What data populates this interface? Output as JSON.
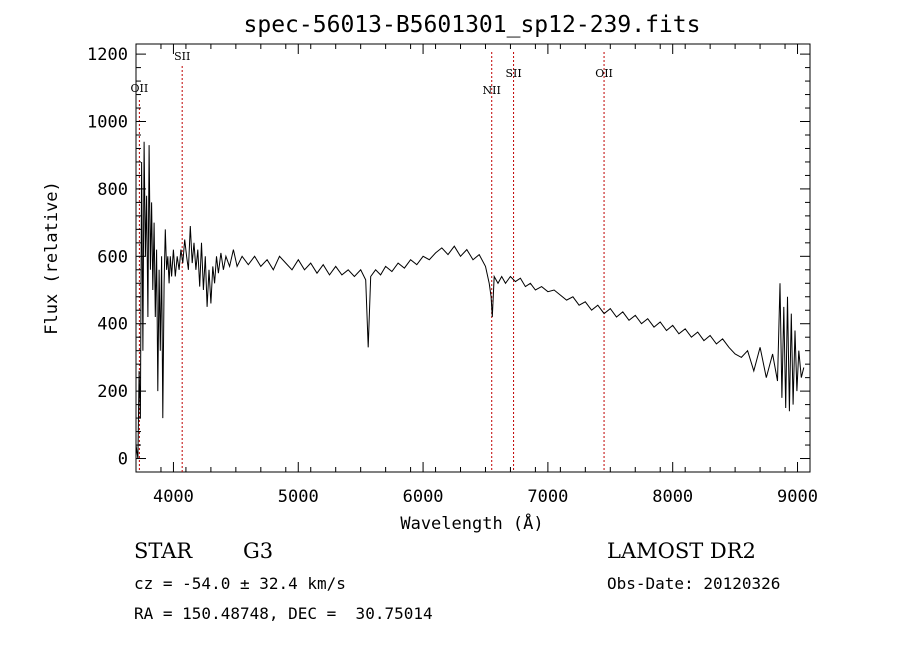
{
  "chart_data": {
    "type": "line",
    "title": "spec-56013-B5601301_sp12-239.fits",
    "xlabel": "Wavelength (Å)",
    "ylabel": "Flux (relative)",
    "xlim": [
      3700,
      9100
    ],
    "ylim": [
      -40,
      1230
    ],
    "x_ticks": [
      4000,
      5000,
      6000,
      7000,
      8000,
      9000
    ],
    "y_ticks": [
      0,
      200,
      400,
      600,
      800,
      1000,
      1200
    ],
    "grid": false,
    "line_color": "#000000",
    "marker_color": "#c00000",
    "emission_lines": [
      {
        "label": "OII",
        "wavelength": 3727
      },
      {
        "label": "SII",
        "wavelength": 4070
      },
      {
        "label": "NII",
        "wavelength": 6550
      },
      {
        "label": "SII",
        "wavelength": 6725
      },
      {
        "label": "OII",
        "wavelength": 7450
      }
    ],
    "series": [
      {
        "values": [
          [
            3700,
            40
          ],
          [
            3715,
            0
          ],
          [
            3725,
            260
          ],
          [
            3735,
            120
          ],
          [
            3745,
            880
          ],
          [
            3755,
            320
          ],
          [
            3765,
            940
          ],
          [
            3775,
            600
          ],
          [
            3785,
            780
          ],
          [
            3795,
            420
          ],
          [
            3805,
            930
          ],
          [
            3815,
            560
          ],
          [
            3825,
            760
          ],
          [
            3835,
            500
          ],
          [
            3845,
            700
          ],
          [
            3855,
            420
          ],
          [
            3865,
            620
          ],
          [
            3875,
            200
          ],
          [
            3885,
            560
          ],
          [
            3895,
            320
          ],
          [
            3905,
            600
          ],
          [
            3915,
            120
          ],
          [
            3925,
            520
          ],
          [
            3935,
            680
          ],
          [
            3945,
            560
          ],
          [
            3955,
            600
          ],
          [
            3965,
            520
          ],
          [
            3975,
            600
          ],
          [
            3985,
            540
          ],
          [
            4000,
            620
          ],
          [
            4015,
            540
          ],
          [
            4030,
            600
          ],
          [
            4045,
            560
          ],
          [
            4060,
            620
          ],
          [
            4075,
            580
          ],
          [
            4090,
            650
          ],
          [
            4105,
            600
          ],
          [
            4120,
            560
          ],
          [
            4135,
            690
          ],
          [
            4150,
            580
          ],
          [
            4165,
            640
          ],
          [
            4180,
            560
          ],
          [
            4195,
            620
          ],
          [
            4210,
            510
          ],
          [
            4225,
            640
          ],
          [
            4240,
            500
          ],
          [
            4255,
            600
          ],
          [
            4270,
            450
          ],
          [
            4285,
            560
          ],
          [
            4300,
            460
          ],
          [
            4315,
            570
          ],
          [
            4330,
            520
          ],
          [
            4345,
            600
          ],
          [
            4360,
            550
          ],
          [
            4380,
            610
          ],
          [
            4400,
            560
          ],
          [
            4420,
            600
          ],
          [
            4450,
            570
          ],
          [
            4480,
            620
          ],
          [
            4510,
            570
          ],
          [
            4550,
            600
          ],
          [
            4600,
            575
          ],
          [
            4650,
            600
          ],
          [
            4700,
            570
          ],
          [
            4750,
            590
          ],
          [
            4800,
            560
          ],
          [
            4850,
            600
          ],
          [
            4900,
            580
          ],
          [
            4950,
            560
          ],
          [
            5000,
            590
          ],
          [
            5050,
            560
          ],
          [
            5100,
            580
          ],
          [
            5150,
            550
          ],
          [
            5200,
            575
          ],
          [
            5250,
            545
          ],
          [
            5300,
            570
          ],
          [
            5350,
            545
          ],
          [
            5400,
            560
          ],
          [
            5450,
            540
          ],
          [
            5500,
            560
          ],
          [
            5540,
            530
          ],
          [
            5560,
            330
          ],
          [
            5580,
            540
          ],
          [
            5620,
            560
          ],
          [
            5660,
            545
          ],
          [
            5700,
            570
          ],
          [
            5750,
            555
          ],
          [
            5800,
            580
          ],
          [
            5850,
            565
          ],
          [
            5900,
            590
          ],
          [
            5950,
            575
          ],
          [
            6000,
            600
          ],
          [
            6050,
            590
          ],
          [
            6100,
            610
          ],
          [
            6150,
            625
          ],
          [
            6200,
            605
          ],
          [
            6250,
            630
          ],
          [
            6300,
            600
          ],
          [
            6350,
            620
          ],
          [
            6400,
            590
          ],
          [
            6450,
            605
          ],
          [
            6500,
            570
          ],
          [
            6530,
            520
          ],
          [
            6545,
            480
          ],
          [
            6555,
            420
          ],
          [
            6570,
            540
          ],
          [
            6600,
            520
          ],
          [
            6630,
            540
          ],
          [
            6660,
            520
          ],
          [
            6700,
            540
          ],
          [
            6740,
            525
          ],
          [
            6780,
            535
          ],
          [
            6820,
            510
          ],
          [
            6860,
            520
          ],
          [
            6900,
            500
          ],
          [
            6950,
            510
          ],
          [
            7000,
            495
          ],
          [
            7050,
            500
          ],
          [
            7100,
            485
          ],
          [
            7150,
            470
          ],
          [
            7200,
            480
          ],
          [
            7250,
            455
          ],
          [
            7300,
            465
          ],
          [
            7350,
            440
          ],
          [
            7400,
            455
          ],
          [
            7450,
            430
          ],
          [
            7500,
            445
          ],
          [
            7550,
            420
          ],
          [
            7600,
            435
          ],
          [
            7650,
            410
          ],
          [
            7700,
            425
          ],
          [
            7750,
            400
          ],
          [
            7800,
            415
          ],
          [
            7850,
            390
          ],
          [
            7900,
            405
          ],
          [
            7950,
            380
          ],
          [
            8000,
            395
          ],
          [
            8050,
            370
          ],
          [
            8100,
            385
          ],
          [
            8150,
            360
          ],
          [
            8200,
            375
          ],
          [
            8250,
            350
          ],
          [
            8300,
            365
          ],
          [
            8350,
            340
          ],
          [
            8400,
            355
          ],
          [
            8450,
            330
          ],
          [
            8500,
            310
          ],
          [
            8550,
            300
          ],
          [
            8600,
            320
          ],
          [
            8650,
            260
          ],
          [
            8700,
            330
          ],
          [
            8750,
            240
          ],
          [
            8800,
            310
          ],
          [
            8840,
            230
          ],
          [
            8860,
            520
          ],
          [
            8875,
            180
          ],
          [
            8890,
            450
          ],
          [
            8905,
            150
          ],
          [
            8920,
            480
          ],
          [
            8935,
            140
          ],
          [
            8950,
            430
          ],
          [
            8965,
            160
          ],
          [
            8980,
            380
          ],
          [
            8995,
            200
          ],
          [
            9010,
            320
          ],
          [
            9030,
            240
          ],
          [
            9050,
            270
          ]
        ]
      }
    ]
  },
  "info": {
    "object_class": "STAR",
    "subclass": "G3",
    "survey": "LAMOST DR2",
    "redshift": "cz = -54.0 ± 32.4 km/s",
    "obs_date": "Obs-Date: 20120326",
    "coords": "RA = 150.48748, DEC =  30.75014"
  }
}
